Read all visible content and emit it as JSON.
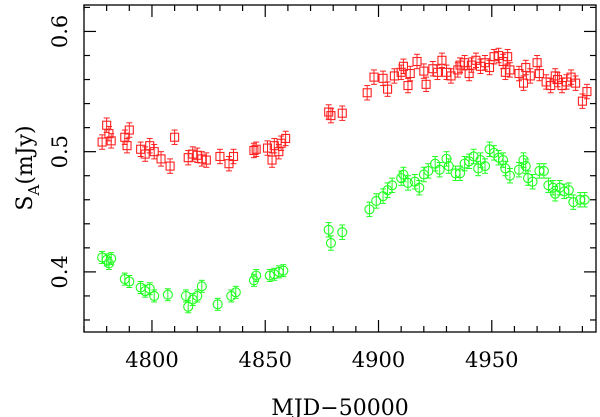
{
  "chart_data": {
    "type": "scatter",
    "xlabel": "MJD−50000",
    "ylabel_main": "S",
    "ylabel_sub": "A",
    "ylabel_rest": "(mJy)",
    "xlim": [
      4770,
      4996
    ],
    "ylim": [
      0.35,
      0.622
    ],
    "xticks": [
      4800,
      4850,
      4900,
      4950
    ],
    "xtick_labels": [
      "4800",
      "4850",
      "4900",
      "4950"
    ],
    "yticks": [
      0.4,
      0.5,
      0.6
    ],
    "ytick_labels": [
      "0.4",
      "0.5",
      "0.6"
    ],
    "x_minor_step": 10,
    "y_minor_step": 0.02,
    "grid": false,
    "series": [
      {
        "marker": "square",
        "color": "#ff2020",
        "points": [
          [
            4778,
            0.508,
            0.006
          ],
          [
            4780,
            0.522,
            0.006
          ],
          [
            4781,
            0.515,
            0.006
          ],
          [
            4782,
            0.509,
            0.006
          ],
          [
            4788,
            0.512,
            0.006
          ],
          [
            4789,
            0.505,
            0.006
          ],
          [
            4790,
            0.518,
            0.006
          ],
          [
            4795,
            0.502,
            0.006
          ],
          [
            4797,
            0.498,
            0.006
          ],
          [
            4799,
            0.505,
            0.006
          ],
          [
            4801,
            0.5,
            0.006
          ],
          [
            4804,
            0.494,
            0.006
          ],
          [
            4808,
            0.488,
            0.006
          ],
          [
            4810,
            0.512,
            0.006
          ],
          [
            4816,
            0.495,
            0.006
          ],
          [
            4818,
            0.498,
            0.006
          ],
          [
            4820,
            0.497,
            0.006
          ],
          [
            4822,
            0.494,
            0.006
          ],
          [
            4824,
            0.493,
            0.006
          ],
          [
            4830,
            0.496,
            0.006
          ],
          [
            4834,
            0.49,
            0.006
          ],
          [
            4836,
            0.496,
            0.006
          ],
          [
            4845,
            0.501,
            0.006
          ],
          [
            4846,
            0.502,
            0.006
          ],
          [
            4851,
            0.503,
            0.006
          ],
          [
            4853,
            0.493,
            0.006
          ],
          [
            4854,
            0.505,
            0.006
          ],
          [
            4856,
            0.5,
            0.006
          ],
          [
            4857,
            0.507,
            0.006
          ],
          [
            4859,
            0.511,
            0.006
          ],
          [
            4878,
            0.533,
            0.006
          ],
          [
            4879,
            0.53,
            0.006
          ],
          [
            4884,
            0.532,
            0.006
          ],
          [
            4895,
            0.549,
            0.006
          ],
          [
            4898,
            0.562,
            0.006
          ],
          [
            4902,
            0.561,
            0.006
          ],
          [
            4904,
            0.552,
            0.006
          ],
          [
            4907,
            0.563,
            0.006
          ],
          [
            4910,
            0.566,
            0.006
          ],
          [
            4911,
            0.571,
            0.006
          ],
          [
            4913,
            0.555,
            0.006
          ],
          [
            4914,
            0.565,
            0.006
          ],
          [
            4917,
            0.575,
            0.006
          ],
          [
            4920,
            0.567,
            0.006
          ],
          [
            4921,
            0.556,
            0.006
          ],
          [
            4924,
            0.569,
            0.006
          ],
          [
            4926,
            0.566,
            0.006
          ],
          [
            4928,
            0.576,
            0.006
          ],
          [
            4930,
            0.566,
            0.006
          ],
          [
            4932,
            0.563,
            0.006
          ],
          [
            4935,
            0.568,
            0.006
          ],
          [
            4936,
            0.572,
            0.006
          ],
          [
            4938,
            0.574,
            0.006
          ],
          [
            4940,
            0.565,
            0.006
          ],
          [
            4941,
            0.572,
            0.006
          ],
          [
            4943,
            0.576,
            0.006
          ],
          [
            4945,
            0.571,
            0.006
          ],
          [
            4947,
            0.574,
            0.006
          ],
          [
            4949,
            0.57,
            0.006
          ],
          [
            4951,
            0.579,
            0.006
          ],
          [
            4953,
            0.58,
            0.006
          ],
          [
            4955,
            0.575,
            0.006
          ],
          [
            4956,
            0.566,
            0.006
          ],
          [
            4957,
            0.579,
            0.006
          ],
          [
            4958,
            0.568,
            0.006
          ],
          [
            4962,
            0.565,
            0.006
          ],
          [
            4964,
            0.557,
            0.006
          ],
          [
            4965,
            0.57,
            0.006
          ],
          [
            4967,
            0.563,
            0.006
          ],
          [
            4970,
            0.574,
            0.006
          ],
          [
            4971,
            0.565,
            0.006
          ],
          [
            4974,
            0.558,
            0.006
          ],
          [
            4976,
            0.555,
            0.006
          ],
          [
            4978,
            0.563,
            0.006
          ],
          [
            4979,
            0.56,
            0.006
          ],
          [
            4981,
            0.555,
            0.006
          ],
          [
            4983,
            0.558,
            0.006
          ],
          [
            4985,
            0.562,
            0.006
          ],
          [
            4987,
            0.557,
            0.006
          ],
          [
            4990,
            0.542,
            0.006
          ],
          [
            4992,
            0.55,
            0.006
          ]
        ]
      },
      {
        "marker": "circle",
        "color": "#20ff20",
        "points": [
          [
            4778,
            0.412,
            0.005
          ],
          [
            4780,
            0.41,
            0.005
          ],
          [
            4781,
            0.407,
            0.005
          ],
          [
            4782,
            0.411,
            0.005
          ],
          [
            4788,
            0.394,
            0.005
          ],
          [
            4790,
            0.392,
            0.005
          ],
          [
            4795,
            0.387,
            0.005
          ],
          [
            4797,
            0.384,
            0.005
          ],
          [
            4799,
            0.386,
            0.005
          ],
          [
            4801,
            0.38,
            0.005
          ],
          [
            4807,
            0.381,
            0.005
          ],
          [
            4815,
            0.38,
            0.005
          ],
          [
            4816,
            0.371,
            0.005
          ],
          [
            4818,
            0.377,
            0.005
          ],
          [
            4820,
            0.38,
            0.005
          ],
          [
            4822,
            0.388,
            0.005
          ],
          [
            4829,
            0.373,
            0.005
          ],
          [
            4835,
            0.38,
            0.005
          ],
          [
            4837,
            0.383,
            0.005
          ],
          [
            4845,
            0.393,
            0.005
          ],
          [
            4846,
            0.397,
            0.005
          ],
          [
            4852,
            0.397,
            0.005
          ],
          [
            4854,
            0.398,
            0.005
          ],
          [
            4856,
            0.4,
            0.005
          ],
          [
            4858,
            0.401,
            0.005
          ],
          [
            4878,
            0.435,
            0.006
          ],
          [
            4879,
            0.424,
            0.006
          ],
          [
            4884,
            0.433,
            0.006
          ],
          [
            4896,
            0.452,
            0.006
          ],
          [
            4899,
            0.459,
            0.006
          ],
          [
            4902,
            0.463,
            0.006
          ],
          [
            4904,
            0.468,
            0.006
          ],
          [
            4906,
            0.472,
            0.006
          ],
          [
            4910,
            0.478,
            0.006
          ],
          [
            4911,
            0.481,
            0.006
          ],
          [
            4913,
            0.474,
            0.006
          ],
          [
            4916,
            0.475,
            0.006
          ],
          [
            4918,
            0.47,
            0.006
          ],
          [
            4920,
            0.481,
            0.006
          ],
          [
            4922,
            0.484,
            0.006
          ],
          [
            4925,
            0.49,
            0.006
          ],
          [
            4927,
            0.485,
            0.006
          ],
          [
            4930,
            0.494,
            0.006
          ],
          [
            4931,
            0.488,
            0.006
          ],
          [
            4934,
            0.482,
            0.006
          ],
          [
            4936,
            0.482,
            0.006
          ],
          [
            4938,
            0.49,
            0.006
          ],
          [
            4940,
            0.492,
            0.006
          ],
          [
            4942,
            0.496,
            0.006
          ],
          [
            4944,
            0.486,
            0.006
          ],
          [
            4945,
            0.493,
            0.006
          ],
          [
            4947,
            0.488,
            0.006
          ],
          [
            4949,
            0.502,
            0.006
          ],
          [
            4951,
            0.499,
            0.006
          ],
          [
            4953,
            0.495,
            0.006
          ],
          [
            4955,
            0.493,
            0.006
          ],
          [
            4956,
            0.486,
            0.006
          ],
          [
            4958,
            0.48,
            0.006
          ],
          [
            4962,
            0.485,
            0.006
          ],
          [
            4964,
            0.493,
            0.006
          ],
          [
            4965,
            0.488,
            0.006
          ],
          [
            4966,
            0.478,
            0.006
          ],
          [
            4968,
            0.475,
            0.006
          ],
          [
            4971,
            0.484,
            0.006
          ],
          [
            4973,
            0.484,
            0.006
          ],
          [
            4975,
            0.472,
            0.006
          ],
          [
            4977,
            0.47,
            0.006
          ],
          [
            4978,
            0.465,
            0.006
          ],
          [
            4980,
            0.47,
            0.006
          ],
          [
            4982,
            0.467,
            0.006
          ],
          [
            4984,
            0.468,
            0.006
          ],
          [
            4986,
            0.458,
            0.006
          ],
          [
            4989,
            0.46,
            0.006
          ],
          [
            4991,
            0.46,
            0.006
          ]
        ]
      }
    ]
  }
}
